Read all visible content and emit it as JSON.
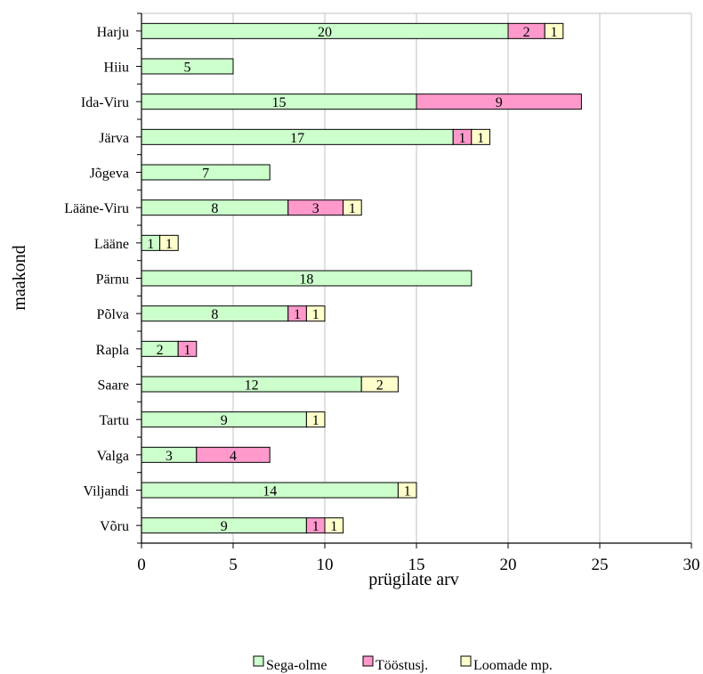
{
  "chart_data": {
    "type": "bar",
    "orientation": "horizontal",
    "stacked": true,
    "title": "",
    "xlabel": "prügilate arv",
    "ylabel": "maakond",
    "xlim": [
      0,
      30
    ],
    "x_ticks": [
      0,
      5,
      10,
      15,
      20,
      25,
      30
    ],
    "grid": "vertical",
    "legend_position": "bottom",
    "categories": [
      "Harju",
      "Hiiu",
      "Ida-Viru",
      "Järva",
      "Jõgeva",
      "Lääne-Viru",
      "Lääne",
      "Pärnu",
      "Põlva",
      "Rapla",
      "Saare",
      "Tartu",
      "Valga",
      "Viljandi",
      "Võru"
    ],
    "series": [
      {
        "name": "Sega-olme",
        "color": "#ccffcc",
        "values": [
          20,
          5,
          15,
          17,
          7,
          8,
          1,
          18,
          8,
          2,
          12,
          9,
          3,
          14,
          9
        ]
      },
      {
        "name": "Tööstusj.",
        "color": "#ff99cc",
        "values": [
          2,
          0,
          9,
          1,
          0,
          3,
          0,
          0,
          1,
          1,
          0,
          0,
          4,
          0,
          1
        ]
      },
      {
        "name": "Loomade mp.",
        "color": "#ffffcc",
        "values": [
          1,
          0,
          0,
          1,
          0,
          1,
          1,
          0,
          1,
          0,
          2,
          1,
          0,
          1,
          1
        ]
      }
    ]
  }
}
